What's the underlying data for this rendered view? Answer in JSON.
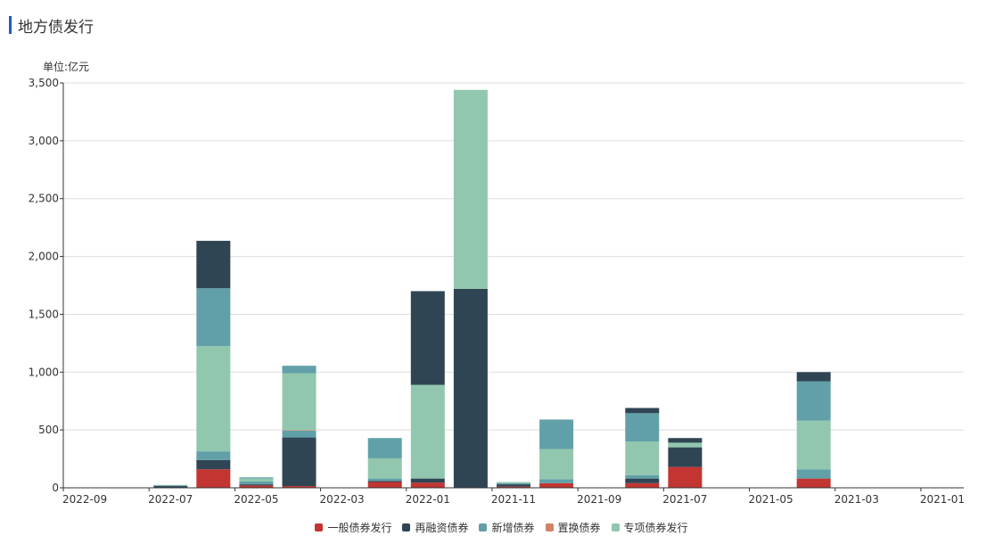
{
  "title": "地方债发行",
  "unit": "单位:亿元",
  "chart_data": {
    "type": "bar",
    "stacked": true,
    "ylim": [
      0,
      3500
    ],
    "yticks": [
      0,
      500,
      1000,
      1500,
      2000,
      2500,
      3000,
      3500
    ],
    "ytick_labels": [
      "0",
      "500",
      "1,000",
      "1,500",
      "2,000",
      "2,500",
      "3,000",
      "3,500"
    ],
    "categories": [
      "2022-09",
      "2022-08",
      "2022-07",
      "2022-06",
      "2022-05",
      "2022-04",
      "2022-03",
      "2022-02",
      "2022-01",
      "2021-12",
      "2021-11",
      "2021-10",
      "2021-09",
      "2021-08",
      "2021-07",
      "2021-06",
      "2021-05",
      "2021-04",
      "2021-03",
      "2021-02",
      "2021-01"
    ],
    "xtick_labels": [
      "2022-09",
      "2022-07",
      "2022-05",
      "2022-03",
      "2022-01",
      "2021-11",
      "2021-09",
      "2021-07",
      "2021-05",
      "2021-03",
      "2021-01"
    ],
    "grid": true,
    "legend_position": "bottom",
    "series": [
      {
        "name": "一般债券发行",
        "color": "#c23531",
        "values": [
          0,
          0,
          0,
          160,
          20,
          15,
          0,
          50,
          45,
          0,
          10,
          40,
          0,
          40,
          180,
          0,
          0,
          80,
          0,
          0,
          0
        ]
      },
      {
        "name": "再融资债券",
        "color": "#2f4554",
        "values": [
          0,
          0,
          15,
          80,
          10,
          420,
          0,
          10,
          35,
          1720,
          20,
          0,
          0,
          40,
          170,
          0,
          0,
          0,
          0,
          0,
          0
        ]
      },
      {
        "name": "新增债券",
        "color": "#61a0a8",
        "values": [
          0,
          0,
          5,
          75,
          25,
          60,
          0,
          20,
          0,
          0,
          10,
          35,
          0,
          30,
          0,
          0,
          0,
          80,
          0,
          0,
          0
        ]
      },
      {
        "name": "置换债券",
        "color": "#d48265",
        "values": [
          0,
          0,
          0,
          0,
          0,
          5,
          0,
          0,
          0,
          0,
          0,
          0,
          0,
          0,
          0,
          0,
          0,
          0,
          0,
          0,
          0
        ]
      },
      {
        "name": "专项债券发行",
        "color": "#91c7ae",
        "values": [
          0,
          0,
          5,
          910,
          25,
          490,
          0,
          175,
          810,
          1720,
          10,
          260,
          0,
          290,
          40,
          0,
          0,
          420,
          0,
          0,
          0
        ]
      },
      {
        "name": "top-new",
        "color": "#61a0a8",
        "hidden_legend": true,
        "values": [
          0,
          0,
          0,
          500,
          10,
          65,
          0,
          175,
          0,
          0,
          0,
          255,
          0,
          245,
          0,
          0,
          0,
          340,
          0,
          0,
          0
        ]
      },
      {
        "name": "top-refi",
        "color": "#2f4554",
        "hidden_legend": true,
        "values": [
          0,
          0,
          0,
          410,
          0,
          0,
          0,
          0,
          810,
          0,
          0,
          0,
          0,
          45,
          40,
          0,
          0,
          80,
          0,
          0,
          0
        ]
      }
    ],
    "legend": [
      "一般债券发行",
      "再融资债券",
      "新增债券",
      "置换债券",
      "专项债券发行"
    ]
  }
}
